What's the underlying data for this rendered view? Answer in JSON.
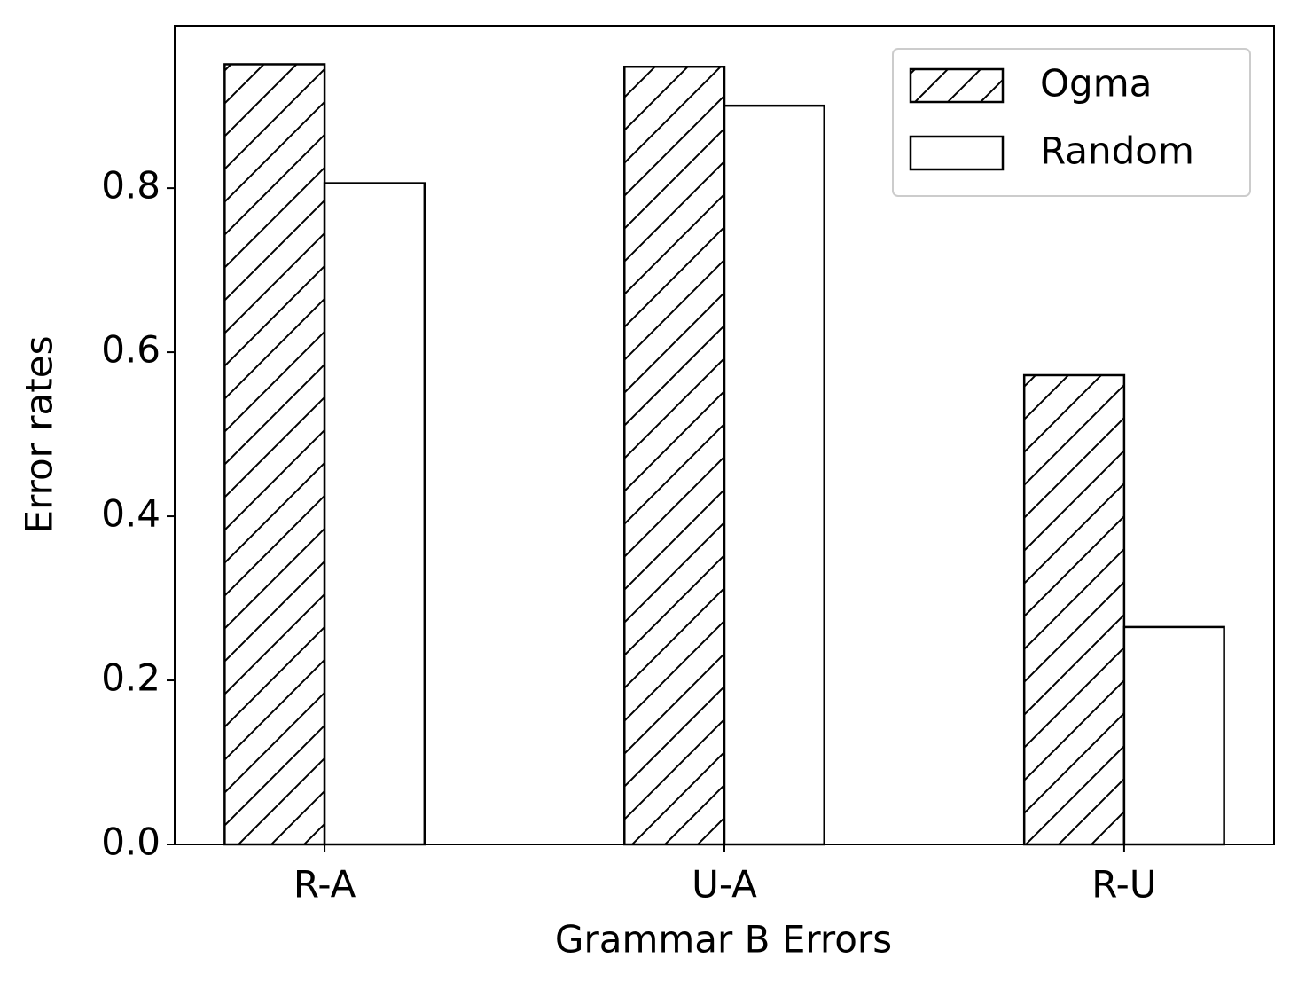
{
  "chart_data": {
    "type": "bar",
    "xlabel": "Grammar B Errors",
    "ylabel": "Error rates",
    "categories": [
      "R-A",
      "U-A",
      "R-U"
    ],
    "series": [
      {
        "name": "Ogma",
        "color": "#ffffff",
        "hatch": "/",
        "values": [
          0.951,
          0.948,
          0.572
        ]
      },
      {
        "name": "Random",
        "color": "#ffffff",
        "hatch": "",
        "values": [
          0.806,
          0.9005,
          0.265
        ]
      }
    ],
    "ylim": [
      0,
      0.998
    ],
    "yticks": [
      {
        "value": 0,
        "label": "0.0"
      },
      0.2,
      0.4,
      0.6,
      0.8
    ],
    "legend": "upper right"
  }
}
